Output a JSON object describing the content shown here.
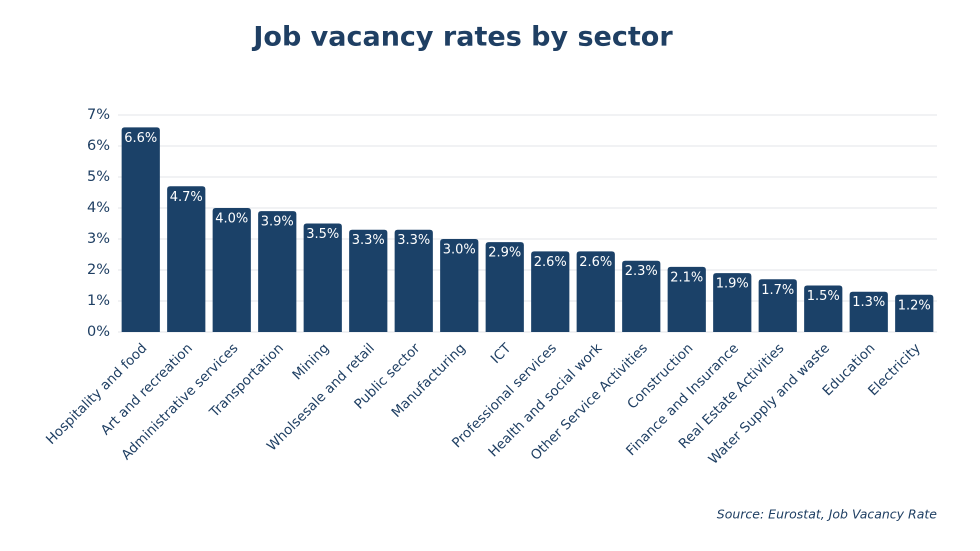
{
  "chart_data": {
    "type": "bar",
    "title": "Job vacancy rates by sector",
    "categories": [
      "Hospitality and food",
      "Art and recreation",
      "Administrative services",
      "Transportation",
      "Mining",
      "Wholsesale and retail",
      "Public sector",
      "Manufacturing",
      "ICT",
      "Professional services",
      "Health and social work",
      "Other Service Activities",
      "Construction",
      "Finance and Insurance",
      "Real Estate Activities",
      "Water Supply and waste",
      "Education",
      "Electricity"
    ],
    "values": [
      6.6,
      4.7,
      4.0,
      3.9,
      3.5,
      3.3,
      3.3,
      3.0,
      2.9,
      2.6,
      2.6,
      2.3,
      2.1,
      1.9,
      1.7,
      1.5,
      1.3,
      1.2
    ],
    "value_labels": [
      "6.6%",
      "4.7%",
      "4.0%",
      "3.9%",
      "3.5%",
      "3.3%",
      "3.3%",
      "3.0%",
      "2.9%",
      "2.6%",
      "2.6%",
      "2.3%",
      "2.1%",
      "1.9%",
      "1.7%",
      "1.5%",
      "1.3%",
      "1.2%"
    ],
    "color": "#1b4168",
    "ylim": [
      0,
      7
    ],
    "yticks": [
      {
        "value": 0,
        "label": "0%"
      },
      {
        "value": 1,
        "label": "1%"
      },
      {
        "value": 2,
        "label": "2%"
      },
      {
        "value": 3,
        "label": "3%"
      },
      {
        "value": 4,
        "label": "4%"
      },
      {
        "value": 5,
        "label": "5%"
      },
      {
        "value": 6,
        "label": "6%"
      },
      {
        "value": 7,
        "label": "7%"
      }
    ],
    "grid": true,
    "source": "Source: Eurostat, Job Vacancy Rate"
  }
}
